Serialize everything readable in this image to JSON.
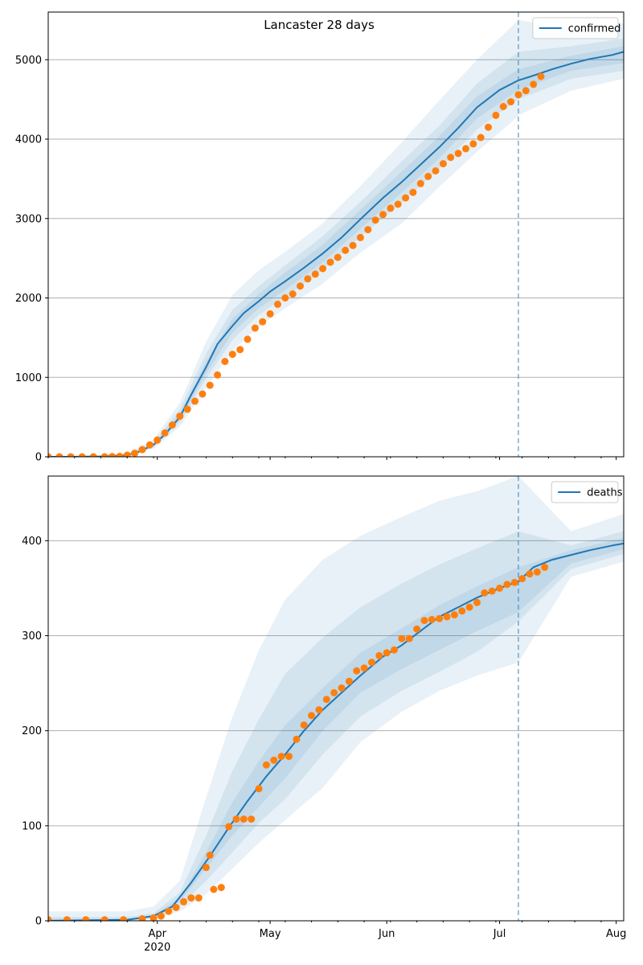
{
  "figure": {
    "title": "Lancaster 28 days"
  },
  "chart_data": [
    {
      "type": "line",
      "name": "confirmed-panel",
      "title": "Lancaster 28 days",
      "xlabel": "",
      "ylabel": "",
      "legend": {
        "position": "top-right",
        "entries": [
          "confirmed"
        ]
      },
      "grid": "y",
      "x_range": [
        "2020-03-03",
        "2020-08-03"
      ],
      "ylim": [
        0,
        5600
      ],
      "y_ticks": [
        0,
        1000,
        2000,
        3000,
        4000,
        5000
      ],
      "forecast_start": "2020-07-06",
      "colors": {
        "model": "#1f77b4",
        "observed": "#ff7f0e",
        "band": "#1f77b4"
      },
      "model_median": {
        "name": "confirmed",
        "dates": [
          "2020-03-03",
          "2020-03-10",
          "2020-03-17",
          "2020-03-24",
          "2020-03-27",
          "2020-03-31",
          "2020-04-03",
          "2020-04-07",
          "2020-04-10",
          "2020-04-14",
          "2020-04-17",
          "2020-04-21",
          "2020-04-24",
          "2020-04-28",
          "2020-05-01",
          "2020-05-05",
          "2020-05-10",
          "2020-05-15",
          "2020-05-20",
          "2020-05-25",
          "2020-05-31",
          "2020-06-05",
          "2020-06-10",
          "2020-06-15",
          "2020-06-20",
          "2020-06-25",
          "2020-07-01",
          "2020-07-06",
          "2020-07-10",
          "2020-07-15",
          "2020-07-20",
          "2020-07-25",
          "2020-07-31",
          "2020-08-03"
        ],
        "values": [
          0,
          0,
          2,
          20,
          60,
          150,
          280,
          500,
          780,
          1130,
          1420,
          1650,
          1810,
          1960,
          2080,
          2210,
          2380,
          2560,
          2760,
          2990,
          3260,
          3460,
          3680,
          3900,
          4140,
          4400,
          4620,
          4740,
          4800,
          4880,
          4950,
          5010,
          5060,
          5100
        ]
      },
      "bands": [
        {
          "label": "outer",
          "dates": [
            "2020-03-03",
            "2020-03-24",
            "2020-03-31",
            "2020-04-07",
            "2020-04-14",
            "2020-04-21",
            "2020-04-28",
            "2020-05-05",
            "2020-05-15",
            "2020-05-25",
            "2020-06-05",
            "2020-06-15",
            "2020-06-25",
            "2020-07-06"
          ],
          "lower": [
            0,
            10,
            100,
            380,
            870,
            1340,
            1640,
            1870,
            2180,
            2570,
            2940,
            3400,
            3840,
            4290
          ],
          "upper": [
            0,
            40,
            220,
            680,
            1450,
            2040,
            2350,
            2580,
            2940,
            3410,
            3960,
            4490,
            5000,
            5500
          ]
        },
        {
          "label": "middle",
          "dates": [
            "2020-03-03",
            "2020-03-24",
            "2020-03-31",
            "2020-04-07",
            "2020-04-14",
            "2020-04-21",
            "2020-04-28",
            "2020-05-05",
            "2020-05-15",
            "2020-05-25",
            "2020-06-05",
            "2020-06-15",
            "2020-06-25",
            "2020-07-06"
          ],
          "lower": [
            0,
            14,
            120,
            430,
            980,
            1470,
            1790,
            2010,
            2350,
            2770,
            3200,
            3630,
            4120,
            4500
          ],
          "upper": [
            0,
            30,
            180,
            600,
            1300,
            1850,
            2150,
            2410,
            2780,
            3210,
            3720,
            4170,
            4700,
            5100
          ]
        },
        {
          "label": "inner",
          "dates": [
            "2020-03-03",
            "2020-03-24",
            "2020-03-31",
            "2020-04-07",
            "2020-04-14",
            "2020-04-21",
            "2020-04-28",
            "2020-05-05",
            "2020-05-15",
            "2020-05-25",
            "2020-06-05",
            "2020-06-15",
            "2020-06-25",
            "2020-07-06"
          ],
          "lower": [
            0,
            17,
            135,
            465,
            1050,
            1560,
            1870,
            2100,
            2450,
            2870,
            3330,
            3760,
            4260,
            4620
          ],
          "upper": [
            0,
            24,
            165,
            540,
            1200,
            1740,
            2050,
            2320,
            2670,
            3110,
            3590,
            4040,
            4540,
            4880
          ]
        }
      ],
      "forecast_bands": [
        {
          "dates": [
            "2020-07-06",
            "2020-07-20",
            "2020-08-03"
          ],
          "lower": [
            4300,
            4610,
            4760
          ],
          "upper": [
            5500,
            5380,
            5460
          ]
        },
        {
          "dates": [
            "2020-07-06",
            "2020-07-20",
            "2020-08-03"
          ],
          "lower": [
            4500,
            4760,
            4860
          ],
          "upper": [
            5100,
            5170,
            5270
          ]
        },
        {
          "dates": [
            "2020-07-06",
            "2020-07-20",
            "2020-08-03"
          ],
          "lower": [
            4620,
            4860,
            4960
          ],
          "upper": [
            4880,
            5050,
            5170
          ]
        }
      ],
      "observed": {
        "dates": [
          "2020-03-03",
          "2020-03-06",
          "2020-03-09",
          "2020-03-12",
          "2020-03-15",
          "2020-03-18",
          "2020-03-20",
          "2020-03-22",
          "2020-03-24",
          "2020-03-26",
          "2020-03-28",
          "2020-03-30",
          "2020-04-01",
          "2020-04-03",
          "2020-04-05",
          "2020-04-07",
          "2020-04-09",
          "2020-04-11",
          "2020-04-13",
          "2020-04-15",
          "2020-04-17",
          "2020-04-19",
          "2020-04-21",
          "2020-04-23",
          "2020-04-25",
          "2020-04-27",
          "2020-04-29",
          "2020-05-01",
          "2020-05-03",
          "2020-05-05",
          "2020-05-07",
          "2020-05-09",
          "2020-05-11",
          "2020-05-13",
          "2020-05-15",
          "2020-05-17",
          "2020-05-19",
          "2020-05-21",
          "2020-05-23",
          "2020-05-25",
          "2020-05-27",
          "2020-05-29",
          "2020-05-31",
          "2020-06-02",
          "2020-06-04",
          "2020-06-06",
          "2020-06-08",
          "2020-06-10",
          "2020-06-12",
          "2020-06-14",
          "2020-06-16",
          "2020-06-18",
          "2020-06-20",
          "2020-06-22",
          "2020-06-24",
          "2020-06-26",
          "2020-06-28",
          "2020-06-30",
          "2020-07-02",
          "2020-07-04",
          "2020-07-06",
          "2020-07-08",
          "2020-07-10",
          "2020-07-12"
        ],
        "values": [
          0,
          0,
          0,
          0,
          0,
          0,
          2,
          5,
          20,
          45,
          90,
          150,
          210,
          300,
          400,
          510,
          600,
          700,
          790,
          900,
          1030,
          1200,
          1290,
          1350,
          1480,
          1620,
          1700,
          1800,
          1920,
          2000,
          2050,
          2150,
          2240,
          2300,
          2370,
          2450,
          2510,
          2600,
          2660,
          2760,
          2860,
          2980,
          3050,
          3130,
          3180,
          3260,
          3330,
          3440,
          3530,
          3600,
          3690,
          3770,
          3820,
          3880,
          3940,
          4020,
          4150,
          4300,
          4410,
          4470,
          4560,
          4610,
          4690,
          4790
        ]
      }
    },
    {
      "type": "line",
      "name": "deaths-panel",
      "title": "",
      "xlabel": "",
      "ylabel": "",
      "legend": {
        "position": "top-right",
        "entries": [
          "deaths"
        ]
      },
      "grid": "y",
      "x_range": [
        "2020-03-03",
        "2020-08-03"
      ],
      "ylim": [
        0,
        468
      ],
      "y_ticks": [
        0,
        100,
        200,
        300,
        400
      ],
      "x_ticks": [
        "Apr",
        "May",
        "Jun",
        "Jul",
        "Aug"
      ],
      "x_tick_dates": [
        "2020-04-01",
        "2020-05-01",
        "2020-06-01",
        "2020-07-01",
        "2020-08-01"
      ],
      "x_year_label": "2020",
      "forecast_start": "2020-07-06",
      "colors": {
        "model": "#1f77b4",
        "observed": "#ff7f0e",
        "band": "#1f77b4"
      },
      "model_median": {
        "name": "deaths",
        "dates": [
          "2020-03-03",
          "2020-03-24",
          "2020-03-31",
          "2020-04-05",
          "2020-04-10",
          "2020-04-15",
          "2020-04-20",
          "2020-04-25",
          "2020-04-30",
          "2020-05-05",
          "2020-05-10",
          "2020-05-15",
          "2020-05-20",
          "2020-05-25",
          "2020-05-31",
          "2020-06-05",
          "2020-06-10",
          "2020-06-15",
          "2020-06-20",
          "2020-06-25",
          "2020-07-01",
          "2020-07-06",
          "2020-07-10",
          "2020-07-15",
          "2020-07-20",
          "2020-07-25",
          "2020-07-31",
          "2020-08-03"
        ],
        "values": [
          0,
          1,
          5,
          15,
          40,
          68,
          98,
          126,
          152,
          175,
          200,
          222,
          240,
          258,
          278,
          290,
          305,
          320,
          330,
          340,
          350,
          357,
          372,
          380,
          385,
          390,
          395,
          397
        ]
      },
      "bands": [
        {
          "label": "outer",
          "dates": [
            "2020-03-03",
            "2020-03-24",
            "2020-03-31",
            "2020-04-07",
            "2020-04-14",
            "2020-04-21",
            "2020-04-28",
            "2020-05-05",
            "2020-05-15",
            "2020-05-25",
            "2020-06-05",
            "2020-06-15",
            "2020-06-25",
            "2020-07-06"
          ],
          "lower": [
            0,
            0,
            2,
            10,
            28,
            55,
            82,
            106,
            140,
            188,
            220,
            242,
            258,
            272
          ],
          "upper": [
            10,
            10,
            15,
            42,
            130,
            215,
            285,
            338,
            380,
            405,
            425,
            442,
            452,
            468
          ]
        },
        {
          "label": "middle",
          "dates": [
            "2020-03-03",
            "2020-03-24",
            "2020-03-31",
            "2020-04-07",
            "2020-04-14",
            "2020-04-21",
            "2020-04-28",
            "2020-05-05",
            "2020-05-15",
            "2020-05-25",
            "2020-06-05",
            "2020-06-15",
            "2020-06-25",
            "2020-07-06"
          ],
          "lower": [
            0,
            0,
            3,
            15,
            42,
            72,
            103,
            128,
            175,
            215,
            242,
            262,
            283,
            315
          ],
          "upper": [
            4,
            4,
            8,
            30,
            90,
            158,
            212,
            260,
            298,
            330,
            355,
            375,
            392,
            410
          ]
        },
        {
          "label": "inner",
          "dates": [
            "2020-03-03",
            "2020-03-24",
            "2020-03-31",
            "2020-04-07",
            "2020-04-14",
            "2020-04-21",
            "2020-04-28",
            "2020-05-05",
            "2020-05-15",
            "2020-05-25",
            "2020-06-05",
            "2020-06-15",
            "2020-06-25",
            "2020-07-06"
          ],
          "lower": [
            0,
            0,
            4,
            20,
            55,
            90,
            120,
            150,
            200,
            240,
            265,
            285,
            305,
            325
          ],
          "upper": [
            2,
            2,
            6,
            24,
            72,
            125,
            168,
            206,
            245,
            282,
            308,
            332,
            352,
            372
          ]
        }
      ],
      "forecast_bands": [
        {
          "dates": [
            "2020-07-06",
            "2020-07-20",
            "2020-08-03"
          ],
          "lower": [
            272,
            362,
            378
          ],
          "upper": [
            468,
            410,
            428
          ]
        },
        {
          "dates": [
            "2020-07-06",
            "2020-07-20",
            "2020-08-03"
          ],
          "lower": [
            315,
            370,
            386
          ],
          "upper": [
            410,
            395,
            410
          ]
        },
        {
          "dates": [
            "2020-07-06",
            "2020-07-20",
            "2020-08-03"
          ],
          "lower": [
            325,
            376,
            391
          ],
          "upper": [
            372,
            390,
            403
          ]
        }
      ],
      "observed": {
        "dates": [
          "2020-03-03",
          "2020-03-08",
          "2020-03-13",
          "2020-03-18",
          "2020-03-23",
          "2020-03-28",
          "2020-03-31",
          "2020-04-02",
          "2020-04-04",
          "2020-04-06",
          "2020-04-08",
          "2020-04-10",
          "2020-04-12",
          "2020-04-14",
          "2020-04-15",
          "2020-04-16",
          "2020-04-18",
          "2020-04-20",
          "2020-04-22",
          "2020-04-24",
          "2020-04-26",
          "2020-04-28",
          "2020-04-30",
          "2020-05-02",
          "2020-05-04",
          "2020-05-06",
          "2020-05-08",
          "2020-05-10",
          "2020-05-12",
          "2020-05-14",
          "2020-05-16",
          "2020-05-18",
          "2020-05-20",
          "2020-05-22",
          "2020-05-24",
          "2020-05-26",
          "2020-05-28",
          "2020-05-30",
          "2020-06-01",
          "2020-06-03",
          "2020-06-05",
          "2020-06-07",
          "2020-06-09",
          "2020-06-11",
          "2020-06-13",
          "2020-06-15",
          "2020-06-17",
          "2020-06-19",
          "2020-06-21",
          "2020-06-23",
          "2020-06-25",
          "2020-06-27",
          "2020-06-29",
          "2020-07-01",
          "2020-07-03",
          "2020-07-05",
          "2020-07-07",
          "2020-07-09",
          "2020-07-11",
          "2020-07-13"
        ],
        "values": [
          1,
          1,
          1,
          1,
          1,
          2,
          3,
          5,
          10,
          14,
          20,
          24,
          24,
          56,
          69,
          33,
          35,
          99,
          107,
          107,
          107,
          139,
          164,
          169,
          173,
          173,
          191,
          206,
          216,
          222,
          233,
          240,
          245,
          252,
          263,
          266,
          272,
          279,
          282,
          285,
          297,
          297,
          307,
          316,
          317,
          318,
          320,
          322,
          326,
          330,
          335,
          345,
          347,
          350,
          354,
          356,
          360,
          365,
          367,
          372
        ]
      }
    }
  ]
}
